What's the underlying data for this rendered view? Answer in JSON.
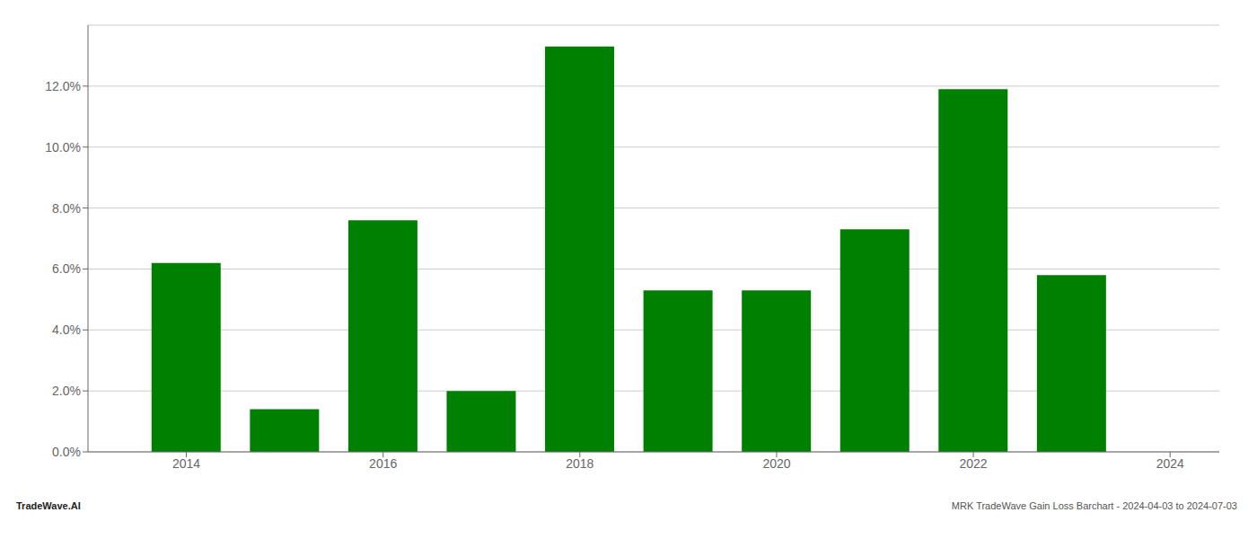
{
  "chart_data": {
    "type": "bar",
    "x": [
      2014,
      2015,
      2016,
      2017,
      2018,
      2019,
      2020,
      2021,
      2022,
      2023
    ],
    "values": [
      0.062,
      0.014,
      0.076,
      0.02,
      0.133,
      0.053,
      0.053,
      0.073,
      0.119,
      0.058
    ],
    "color": "#008000",
    "xlim": [
      2013.0,
      2024.5
    ],
    "xticks": [
      2014,
      2016,
      2018,
      2020,
      2022,
      2024
    ],
    "ylim": [
      0,
      0.14
    ],
    "yticks": [
      {
        "value": 0.0,
        "label": "0.0%"
      },
      {
        "value": 0.02,
        "label": "2.0%"
      },
      {
        "value": 0.04,
        "label": "4.0%"
      },
      {
        "value": 0.06,
        "label": "6.0%"
      },
      {
        "value": 0.08,
        "label": "8.0%"
      },
      {
        "value": 0.1,
        "label": "10.0%"
      },
      {
        "value": 0.12,
        "label": "12.0%"
      }
    ],
    "grid": true,
    "annotations": [
      "TradeWave.AI",
      "MRK TradeWave Gain Loss Barchart - 2024-04-03 to 2024-07-03"
    ]
  }
}
